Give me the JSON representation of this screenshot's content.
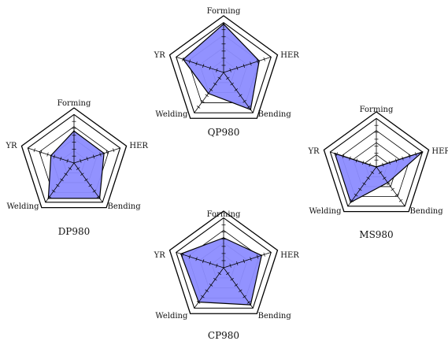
{
  "colors": {
    "fill": "#8c8cff",
    "outline": "#000000",
    "grid": "#000000",
    "background": "#ffffff"
  },
  "chart_data": [
    {
      "type": "radar",
      "title": "QP980",
      "axes": [
        "Forming",
        "HER",
        "Bending",
        "Welding",
        "YR"
      ],
      "values": [
        0.97,
        0.75,
        0.92,
        0.52,
        0.85
      ],
      "range": [
        0,
        1
      ],
      "rings": 4
    },
    {
      "type": "radar",
      "title": "DP980",
      "axes": [
        "Forming",
        "HER",
        "Bending",
        "Welding",
        "YR"
      ],
      "values": [
        0.66,
        0.65,
        0.9,
        0.9,
        0.5
      ],
      "range": [
        0,
        1
      ],
      "rings": 4
    },
    {
      "type": "radar",
      "title": "MS980",
      "axes": [
        "Forming",
        "HER",
        "Bending",
        "Welding",
        "YR"
      ],
      "values": [
        0.0,
        1.0,
        0.4,
        0.9,
        0.9
      ],
      "range": [
        0,
        1
      ],
      "rings": 4
    },
    {
      "type": "radar",
      "title": "CP980",
      "axes": [
        "Forming",
        "HER",
        "Bending",
        "Welding",
        "YR"
      ],
      "values": [
        0.6,
        0.8,
        0.92,
        0.85,
        0.9
      ],
      "range": [
        0,
        1
      ],
      "rings": 4
    }
  ]
}
